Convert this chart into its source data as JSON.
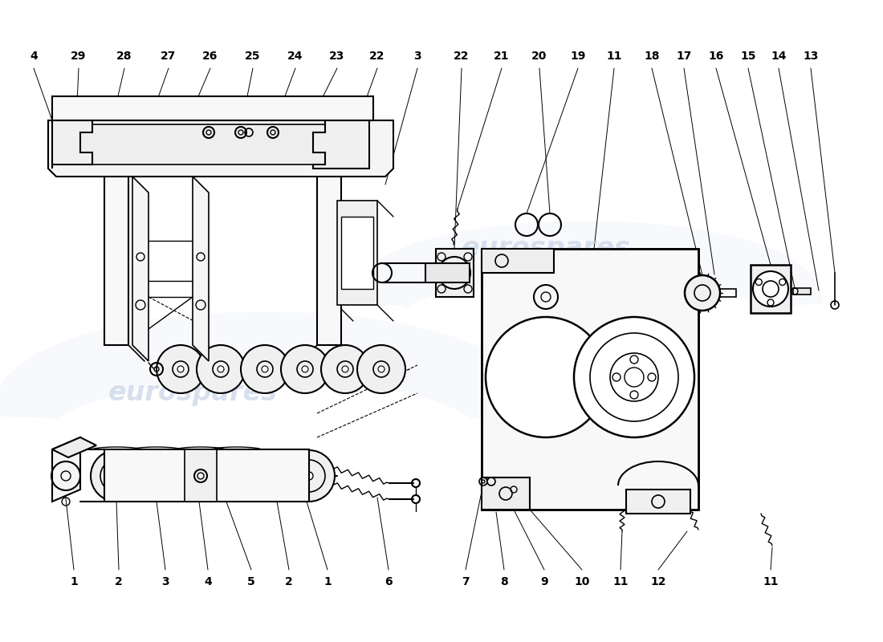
{
  "bg_color": "#ffffff",
  "line_color": "#000000",
  "watermark_color": "#c8d4e8",
  "watermark_text": "eurospares",
  "top_labels": [
    [
      "1",
      92
    ],
    [
      "2",
      148
    ],
    [
      "3",
      206
    ],
    [
      "4",
      259
    ],
    [
      "5",
      313
    ],
    [
      "2",
      360
    ],
    [
      "1",
      408
    ],
    [
      "6",
      484
    ],
    [
      "7",
      580
    ],
    [
      "8",
      628
    ],
    [
      "9",
      678
    ],
    [
      "10",
      725
    ],
    [
      "11",
      773
    ],
    [
      "12",
      820
    ],
    [
      "11",
      960
    ]
  ],
  "bot_labels": [
    [
      "4",
      42
    ],
    [
      "29",
      98
    ],
    [
      "28",
      155
    ],
    [
      "27",
      210
    ],
    [
      "26",
      262
    ],
    [
      "25",
      315
    ],
    [
      "24",
      368
    ],
    [
      "23",
      420
    ],
    [
      "22",
      470
    ],
    [
      "3",
      520
    ],
    [
      "22",
      575
    ],
    [
      "21",
      625
    ],
    [
      "20",
      672
    ],
    [
      "19",
      720
    ],
    [
      "11",
      765
    ],
    [
      "18",
      812
    ],
    [
      "17",
      852
    ],
    [
      "16",
      892
    ],
    [
      "15",
      932
    ],
    [
      "14",
      970
    ],
    [
      "13",
      1010
    ]
  ]
}
